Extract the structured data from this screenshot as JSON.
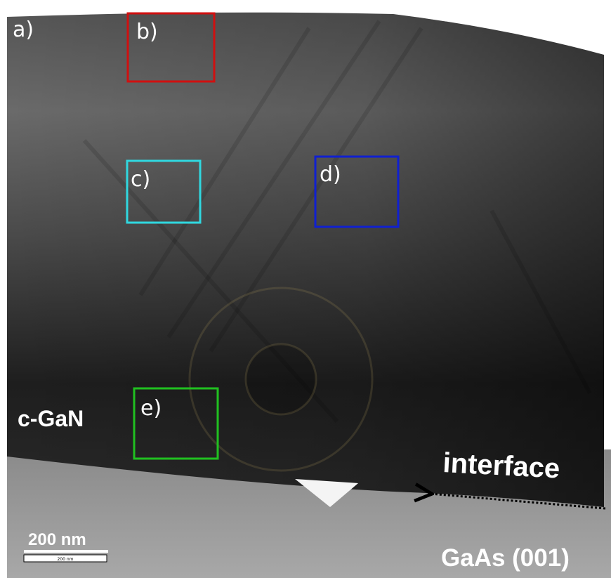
{
  "panel_label": "a)",
  "regions": [
    {
      "label": "b)"
    },
    {
      "label": "c)"
    },
    {
      "label": "d)"
    },
    {
      "label": "e)"
    }
  ],
  "annotations": {
    "layer": "c-GaN",
    "interface": "interface",
    "substrate": "GaAs (001)"
  },
  "scale_bar": {
    "label": "200 nm",
    "inner_label": "200 nm"
  }
}
